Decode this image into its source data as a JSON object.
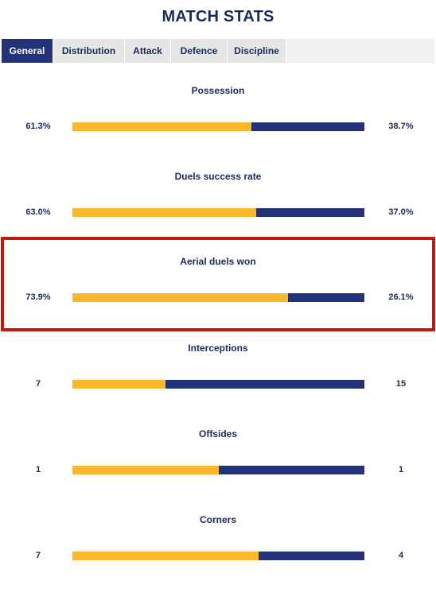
{
  "title": "MATCH STATS",
  "tabs": [
    {
      "label": "General",
      "active": true
    },
    {
      "label": "Distribution",
      "active": false
    },
    {
      "label": "Attack",
      "active": false
    },
    {
      "label": "Defence",
      "active": false
    },
    {
      "label": "Discipline",
      "active": false
    }
  ],
  "colors": {
    "home": "#fbb82b",
    "away": "#24327a",
    "highlight": "#c0190f",
    "text": "#1a2b57"
  },
  "stats": [
    {
      "label": "Possession",
      "home": "61.3%",
      "away": "38.7%",
      "home_share": 0.613
    },
    {
      "label": "Duels success rate",
      "home": "63.0%",
      "away": "37.0%",
      "home_share": 0.63
    },
    {
      "label": "Aerial duels won",
      "home": "73.9%",
      "away": "26.1%",
      "home_share": 0.739
    },
    {
      "label": "Interceptions",
      "home": "7",
      "away": "15",
      "home_share": 0.3182
    },
    {
      "label": "Offsides",
      "home": "1",
      "away": "1",
      "home_share": 0.5
    },
    {
      "label": "Corners",
      "home": "7",
      "away": "4",
      "home_share": 0.6364
    }
  ]
}
